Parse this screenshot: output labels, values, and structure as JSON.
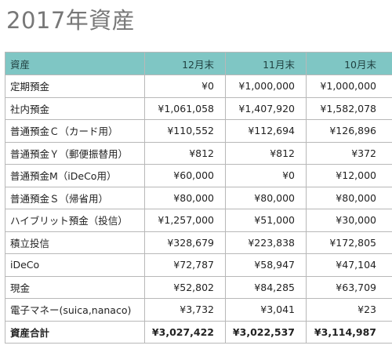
{
  "title": "2017年資産",
  "table": {
    "headers": [
      "資産",
      "12月末",
      "11月末",
      "10月末"
    ],
    "rows": [
      {
        "label": "定期預金",
        "values": [
          "¥0",
          "¥1,000,000",
          "¥1,000,000"
        ]
      },
      {
        "label": "社内預金",
        "values": [
          "¥1,061,058",
          "¥1,407,920",
          "¥1,582,078"
        ]
      },
      {
        "label": "普通預金Ｃ（カード用）",
        "values": [
          "¥110,552",
          "¥112,694",
          "¥126,896"
        ]
      },
      {
        "label": "普通預金Ｙ（郵便振替用）",
        "values": [
          "¥812",
          "¥812",
          "¥372"
        ]
      },
      {
        "label": "普通預金M（iDeCo用）",
        "values": [
          "¥60,000",
          "¥0",
          "¥12,000"
        ]
      },
      {
        "label": "普通預金Ｓ（帰省用）",
        "values": [
          "¥80,000",
          "¥80,000",
          "¥80,000"
        ]
      },
      {
        "label": "ハイブリット預金（投信）",
        "values": [
          "¥1,257,000",
          "¥51,000",
          "¥30,000"
        ]
      },
      {
        "label": "積立投信",
        "values": [
          "¥328,679",
          "¥223,838",
          "¥172,805"
        ]
      },
      {
        "label": "iDeCo",
        "values": [
          "¥72,787",
          "¥58,947",
          "¥47,104"
        ]
      },
      {
        "label": "現金",
        "values": [
          "¥52,802",
          "¥84,285",
          "¥63,709"
        ]
      },
      {
        "label": "電子マネー(suica,nanaco)",
        "values": [
          "¥3,732",
          "¥3,041",
          "¥23"
        ]
      }
    ],
    "total": {
      "label": "資産合計",
      "values": [
        "¥3,027,422",
        "¥3,022,537",
        "¥3,114,987"
      ]
    }
  },
  "colors": {
    "header_bg": "#7fc6c4",
    "title_text": "#777777",
    "grid_line": "#b8b8b8"
  }
}
